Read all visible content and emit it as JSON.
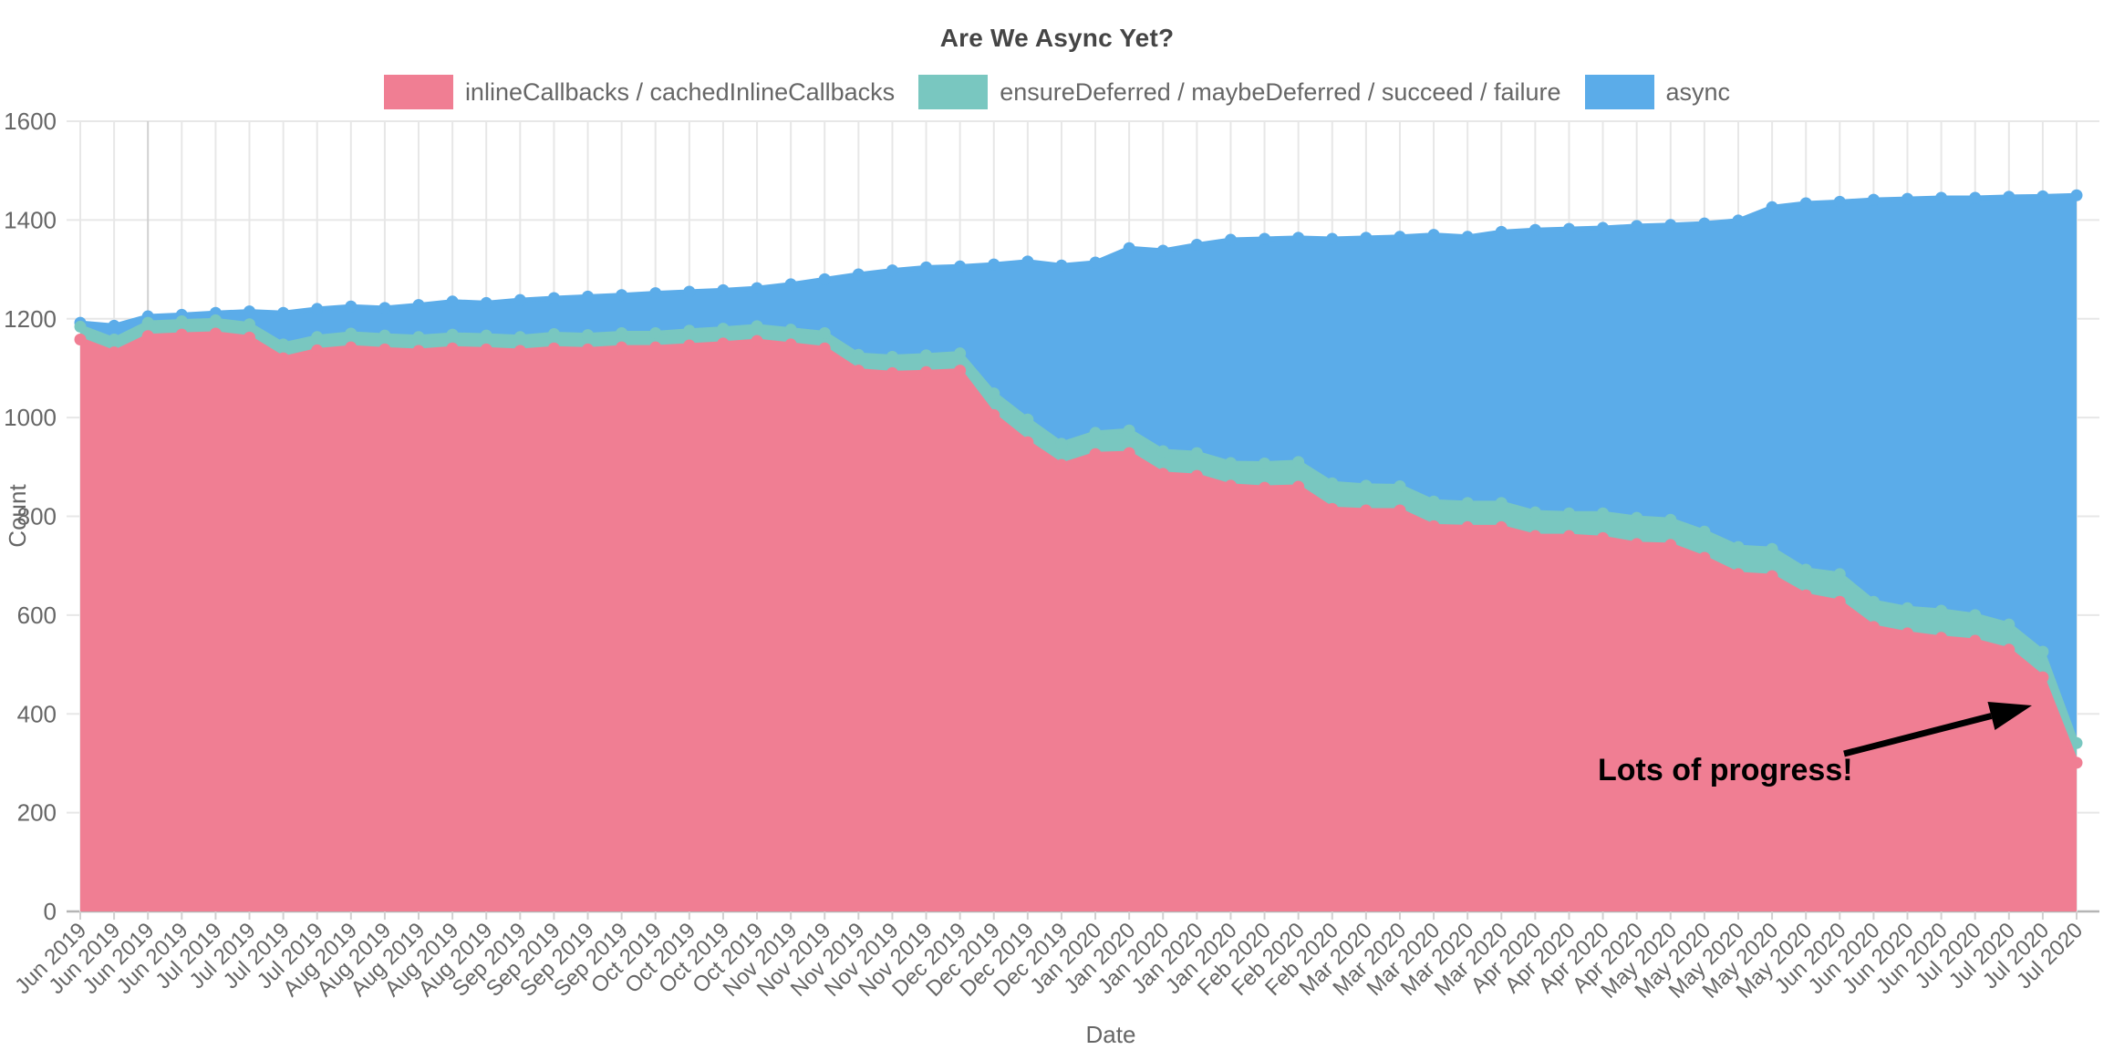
{
  "title": "Are We Async Yet?",
  "annotation_text": "Lots of progress!",
  "colors": {
    "pink": "#F07E93",
    "teal": "#79C7C0",
    "blue": "#5BACE9",
    "grid": "#E7E7E7",
    "grid_dark": "#D0D0D0",
    "axis_line": "#B5B5B5",
    "tick_text": "#666666",
    "title_text": "#454545",
    "annotation": "#000000"
  },
  "chart_data": {
    "type": "area",
    "stacked": true,
    "title": "Are We Async Yet?",
    "xlabel": "Date",
    "ylabel": "Count",
    "ylim": [
      0,
      1600
    ],
    "y_ticks": [
      0,
      200,
      400,
      600,
      800,
      1000,
      1200,
      1400,
      1600
    ],
    "grid": true,
    "legend_position": "top",
    "annotation": "Lots of progress!",
    "categories": [
      "Jun 2019",
      "Jun 2019",
      "Jun 2019",
      "Jun 2019",
      "Jul 2019",
      "Jul 2019",
      "Jul 2019",
      "Jul 2019",
      "Aug 2019",
      "Aug 2019",
      "Aug 2019",
      "Aug 2019",
      "Aug 2019",
      "Sep 2019",
      "Sep 2019",
      "Sep 2019",
      "Sep 2019",
      "Oct 2019",
      "Oct 2019",
      "Oct 2019",
      "Oct 2019",
      "Nov 2019",
      "Nov 2019",
      "Nov 2019",
      "Nov 2019",
      "Nov 2019",
      "Dec 2019",
      "Dec 2019",
      "Dec 2019",
      "Dec 2019",
      "Jan 2020",
      "Jan 2020",
      "Jan 2020",
      "Jan 2020",
      "Jan 2020",
      "Feb 2020",
      "Feb 2020",
      "Feb 2020",
      "Mar 2020",
      "Mar 2020",
      "Mar 2020",
      "Mar 2020",
      "Mar 2020",
      "Apr 2020",
      "Apr 2020",
      "Apr 2020",
      "Apr 2020",
      "May 2020",
      "May 2020",
      "May 2020",
      "May 2020",
      "May 2020",
      "Jun 2020",
      "Jun 2020",
      "Jun 2020",
      "Jun 2020",
      "Jul 2020",
      "Jul 2020",
      "Jul 2020",
      "Jul 2020"
    ],
    "series": [
      {
        "name": "inlineCallbacks / cachedInlineCallbacks",
        "color": "#F07E93",
        "values": [
          1158,
          1132,
          1165,
          1168,
          1170,
          1162,
          1120,
          1136,
          1142,
          1138,
          1135,
          1140,
          1138,
          1135,
          1140,
          1138,
          1142,
          1142,
          1146,
          1150,
          1155,
          1148,
          1140,
          1095,
          1090,
          1092,
          1095,
          1005,
          950,
          904,
          926,
          928,
          886,
          882,
          862,
          858,
          860,
          815,
          812,
          812,
          780,
          778,
          778,
          760,
          760,
          756,
          744,
          742,
          716,
          683,
          679,
          640,
          627,
          576,
          563,
          554,
          548,
          530,
          474,
          301
        ]
      },
      {
        "name": "ensureDeferred / maybeDeferred / succeed / failure",
        "color": "#79C7C0",
        "values": [
          26,
          26,
          27,
          27,
          27,
          27,
          28,
          27,
          28,
          28,
          28,
          28,
          28,
          28,
          29,
          29,
          29,
          29,
          30,
          30,
          30,
          30,
          31,
          32,
          33,
          34,
          35,
          44,
          46,
          43,
          43,
          46,
          46,
          46,
          46,
          49,
          50,
          52,
          50,
          49,
          50,
          49,
          49,
          48,
          46,
          50,
          53,
          51,
          53,
          55,
          55,
          52,
          56,
          51,
          51,
          55,
          52,
          51,
          52,
          40
        ]
      },
      {
        "name": "async",
        "color": "#5BACE9",
        "values": [
          8,
          28,
          13,
          13,
          15,
          26,
          64,
          57,
          55,
          56,
          65,
          67,
          66,
          75,
          73,
          78,
          77,
          81,
          79,
          78,
          77,
          92,
          109,
          163,
          175,
          178,
          176,
          261,
          320,
          361,
          345,
          369,
          406,
          422,
          452,
          455,
          454,
          495,
          502,
          505,
          540,
          539,
          549,
          572,
          576,
          578,
          591,
          597,
          624,
          661,
          692,
          742,
          754,
          814,
          829,
          836,
          845,
          866,
          922,
          1109
        ]
      }
    ]
  }
}
